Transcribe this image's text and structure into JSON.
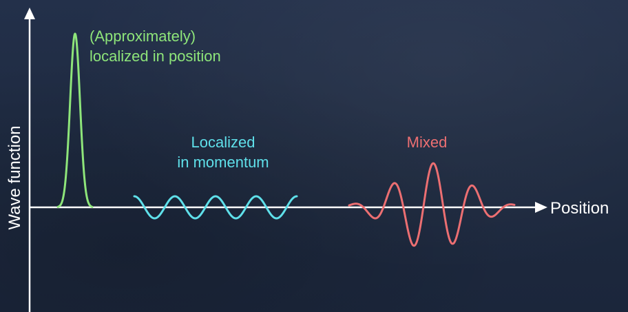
{
  "axes": {
    "x_label": "Position",
    "y_label": "Wave function"
  },
  "curves": {
    "position_localized": {
      "label_line1": "(Approximately)",
      "label_line2": "localized in position",
      "color": "#8ee57a"
    },
    "momentum_localized": {
      "label_line1": "Localized",
      "label_line2": "in momentum",
      "color": "#5fe0ea"
    },
    "mixed": {
      "label": "Mixed",
      "color": "#ec6f72"
    }
  },
  "colors": {
    "background": "#1f2b42",
    "axis": "#ffffff"
  }
}
